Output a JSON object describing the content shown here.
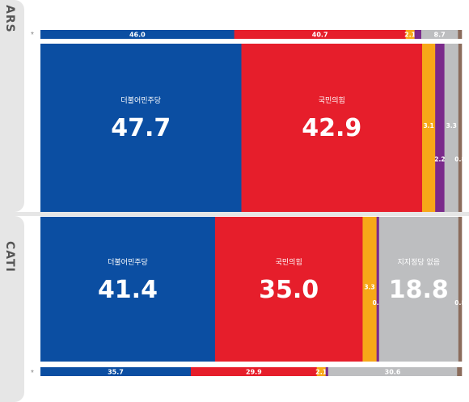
{
  "sections": [
    {
      "method": "ARS",
      "prev_marker": "*",
      "chart_data": {
        "type": "bar",
        "previous": [
          {
            "value": 46.0,
            "label": "46.0",
            "color": "#0b4ea2"
          },
          {
            "value": 40.7,
            "label": "40.7",
            "color": "#e61e2b"
          },
          {
            "value": 2.1,
            "label": "2.1",
            "color": "#f7a818"
          },
          {
            "value": 1.6,
            "label": "",
            "color": "#7a2a8b"
          },
          {
            "value": 8.7,
            "label": "8.7",
            "color": "#bdbec0"
          },
          {
            "value": 0.9,
            "label": "",
            "color": "#8b6c5c"
          }
        ],
        "current": [
          {
            "value": 47.7,
            "label": "47.7",
            "name": "더불어민주당",
            "color": "#0b4ea2",
            "style": "big"
          },
          {
            "value": 42.9,
            "label": "42.9",
            "name": "국민의힘",
            "color": "#e61e2b",
            "style": "big"
          },
          {
            "value": 3.1,
            "label": "3.1",
            "color": "#f7a818",
            "style": "small",
            "label_pos": 0.5
          },
          {
            "value": 2.2,
            "label": "2.2",
            "color": "#7a2a8b",
            "style": "small",
            "label_pos": 0.7
          },
          {
            "value": 3.3,
            "label": "3.3",
            "color": "#bdbec0",
            "style": "small",
            "label_pos": 0.5
          },
          {
            "value": 0.8,
            "label": "0.8",
            "color": "#8b6c5c",
            "style": "small",
            "label_pos": 0.7
          }
        ]
      }
    },
    {
      "method": "CATI",
      "prev_marker": "*",
      "chart_data": {
        "type": "bar",
        "current": [
          {
            "value": 41.4,
            "label": "41.4",
            "name": "더불어민주당",
            "color": "#0b4ea2",
            "style": "big"
          },
          {
            "value": 35.0,
            "label": "35.0",
            "name": "국민의힘",
            "color": "#e61e2b",
            "style": "big"
          },
          {
            "value": 3.3,
            "label": "3.3",
            "color": "#f7a818",
            "style": "small",
            "label_pos": 0.5
          },
          {
            "value": 0.6,
            "label": "0.6",
            "color": "#7a2a8b",
            "style": "small",
            "label_pos": 0.61
          },
          {
            "value": 18.8,
            "label": "18.8",
            "name": "지지정당 없음",
            "color": "#bdbec0",
            "style": "big"
          },
          {
            "value": 0.8,
            "label": "0.8",
            "color": "#8b6c5c",
            "style": "small",
            "label_pos": 0.61
          }
        ],
        "previous": [
          {
            "value": 35.7,
            "label": "35.7",
            "color": "#0b4ea2"
          },
          {
            "value": 29.9,
            "label": "29.9",
            "color": "#e61e2b"
          },
          {
            "value": 2.1,
            "label": "2.1",
            "color": "#f7a818"
          },
          {
            "value": 0.6,
            "label": "",
            "color": "#7a2a8b"
          },
          {
            "value": 30.6,
            "label": "30.6",
            "color": "#bdbec0"
          },
          {
            "value": 1.1,
            "label": "",
            "color": "#8b6c5c"
          }
        ]
      }
    }
  ]
}
